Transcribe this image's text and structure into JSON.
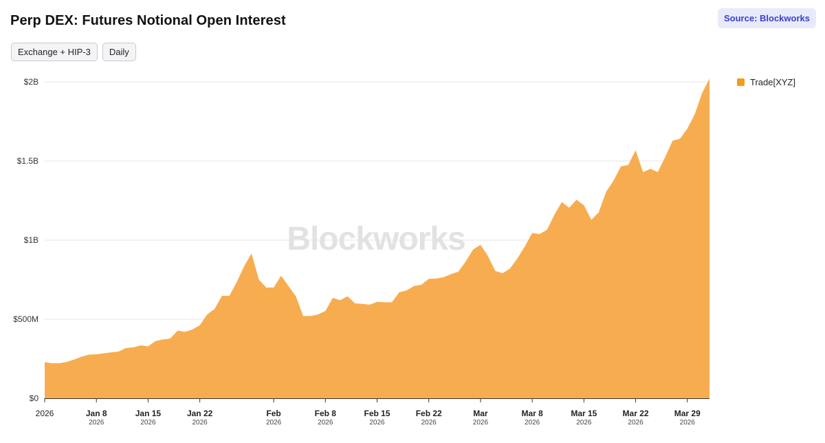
{
  "header": {
    "title": "Perp DEX: Futures Notional Open Interest",
    "source_label": "Source: Blockworks"
  },
  "filters": [
    {
      "label": "Exchange + HIP-3"
    },
    {
      "label": "Daily"
    }
  ],
  "watermark": "Blockworks",
  "colors": {
    "series": "#f7ad4f",
    "series_legend": "#f59a1b",
    "grid": "#e6e6e6"
  },
  "chart_data": {
    "type": "area",
    "title": "Perp DEX: Futures Notional Open Interest",
    "xlabel": "",
    "ylabel": "",
    "ylim": [
      0,
      2000000000
    ],
    "yticks": [
      {
        "value": 0,
        "label": "$0"
      },
      {
        "value": 500000000,
        "label": "$500M"
      },
      {
        "value": 1000000000,
        "label": "$1B"
      },
      {
        "value": 1500000000,
        "label": "$1.5B"
      },
      {
        "value": 2000000000,
        "label": "$2B"
      }
    ],
    "xticks": [
      {
        "date": "2026-01-01",
        "label": "2026",
        "sublabel": ""
      },
      {
        "date": "2026-01-08",
        "label": "Jan 8",
        "sublabel": "2026"
      },
      {
        "date": "2026-01-15",
        "label": "Jan 15",
        "sublabel": "2026"
      },
      {
        "date": "2026-01-22",
        "label": "Jan 22",
        "sublabel": "2026"
      },
      {
        "date": "2026-02-01",
        "label": "Feb",
        "sublabel": "2026"
      },
      {
        "date": "2026-02-08",
        "label": "Feb 8",
        "sublabel": "2026"
      },
      {
        "date": "2026-02-15",
        "label": "Feb 15",
        "sublabel": "2026"
      },
      {
        "date": "2026-02-22",
        "label": "Feb 22",
        "sublabel": "2026"
      },
      {
        "date": "2026-03-01",
        "label": "Mar",
        "sublabel": "2026"
      },
      {
        "date": "2026-03-08",
        "label": "Mar 8",
        "sublabel": "2026"
      },
      {
        "date": "2026-03-15",
        "label": "Mar 15",
        "sublabel": "2026"
      },
      {
        "date": "2026-03-22",
        "label": "Mar 22",
        "sublabel": "2026"
      },
      {
        "date": "2026-03-29",
        "label": "Mar 29",
        "sublabel": "2026"
      }
    ],
    "legend_position": "right",
    "grid": true,
    "series": [
      {
        "name": "Trade[XYZ]",
        "x": [
          "2026-01-01",
          "2026-01-02",
          "2026-01-03",
          "2026-01-04",
          "2026-01-05",
          "2026-01-06",
          "2026-01-07",
          "2026-01-08",
          "2026-01-09",
          "2026-01-10",
          "2026-01-11",
          "2026-01-12",
          "2026-01-13",
          "2026-01-14",
          "2026-01-15",
          "2026-01-16",
          "2026-01-17",
          "2026-01-18",
          "2026-01-19",
          "2026-01-20",
          "2026-01-21",
          "2026-01-22",
          "2026-01-23",
          "2026-01-24",
          "2026-01-25",
          "2026-01-26",
          "2026-01-27",
          "2026-01-28",
          "2026-01-29",
          "2026-01-30",
          "2026-01-31",
          "2026-02-01",
          "2026-02-02",
          "2026-02-03",
          "2026-02-04",
          "2026-02-05",
          "2026-02-06",
          "2026-02-07",
          "2026-02-08",
          "2026-02-09",
          "2026-02-10",
          "2026-02-11",
          "2026-02-12",
          "2026-02-13",
          "2026-02-14",
          "2026-02-15",
          "2026-02-16",
          "2026-02-17",
          "2026-02-18",
          "2026-02-19",
          "2026-02-20",
          "2026-02-21",
          "2026-02-22",
          "2026-02-23",
          "2026-02-24",
          "2026-02-25",
          "2026-02-26",
          "2026-02-27",
          "2026-02-28",
          "2026-03-01",
          "2026-03-02",
          "2026-03-03",
          "2026-03-04",
          "2026-03-05",
          "2026-03-06",
          "2026-03-07",
          "2026-03-08",
          "2026-03-09",
          "2026-03-10",
          "2026-03-11",
          "2026-03-12",
          "2026-03-13",
          "2026-03-14",
          "2026-03-15",
          "2026-03-16",
          "2026-03-17",
          "2026-03-18",
          "2026-03-19",
          "2026-03-20",
          "2026-03-21",
          "2026-03-22",
          "2026-03-23",
          "2026-03-24",
          "2026-03-25",
          "2026-03-26",
          "2026-03-27",
          "2026-03-28",
          "2026-03-29",
          "2026-03-30",
          "2026-03-31",
          "2026-04-01"
        ],
        "values": [
          228000000,
          222000000,
          222000000,
          230000000,
          245000000,
          263000000,
          276000000,
          278000000,
          284000000,
          290000000,
          295000000,
          318000000,
          322000000,
          335000000,
          328000000,
          362000000,
          372000000,
          378000000,
          428000000,
          420000000,
          435000000,
          462000000,
          530000000,
          565000000,
          648000000,
          648000000,
          735000000,
          835000000,
          915000000,
          750000000,
          700000000,
          700000000,
          775000000,
          710000000,
          645000000,
          520000000,
          520000000,
          530000000,
          552000000,
          635000000,
          620000000,
          645000000,
          600000000,
          597000000,
          592000000,
          610000000,
          607000000,
          607000000,
          670000000,
          682000000,
          710000000,
          718000000,
          755000000,
          757000000,
          765000000,
          785000000,
          800000000,
          865000000,
          940000000,
          970000000,
          900000000,
          805000000,
          790000000,
          820000000,
          885000000,
          960000000,
          1045000000,
          1038000000,
          1065000000,
          1160000000,
          1240000000,
          1205000000,
          1255000000,
          1220000000,
          1128000000,
          1175000000,
          1305000000,
          1375000000,
          1465000000,
          1475000000,
          1568000000,
          1430000000,
          1450000000,
          1430000000,
          1525000000,
          1628000000,
          1640000000,
          1705000000,
          1795000000,
          1930000000,
          2020000000
        ]
      }
    ]
  }
}
